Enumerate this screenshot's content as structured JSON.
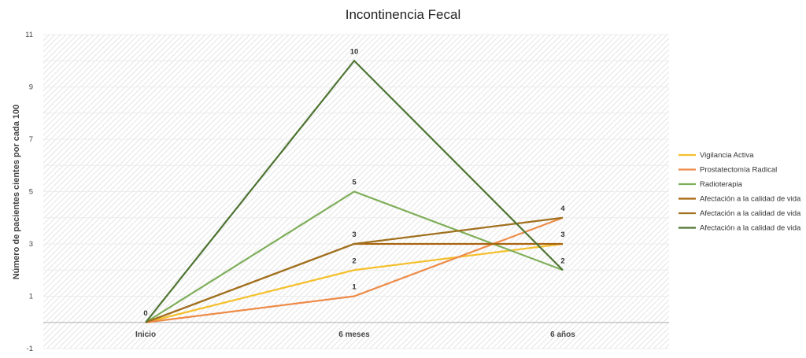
{
  "chart_data": {
    "type": "line",
    "title": "Incontinencia Fecal",
    "ylabel": "Número de pacientes cientes por cada 100",
    "xlabel": "",
    "categories": [
      "Inicio",
      "6 meses",
      "6 años"
    ],
    "ylim": [
      -1,
      11
    ],
    "yticks": [
      11,
      9,
      7,
      5,
      3,
      1,
      -1
    ],
    "grid": true,
    "legend_position": "right",
    "series": [
      {
        "name": "Vigilancia Activa",
        "values": [
          0,
          2,
          3
        ],
        "color": "#F5C02E"
      },
      {
        "name": "Prostatectomía Radical",
        "values": [
          0,
          1,
          4
        ],
        "color": "#ED8B48"
      },
      {
        "name": "Radioterapia",
        "values": [
          0,
          5,
          2
        ],
        "color": "#7FAE5A"
      },
      {
        "name": "Afectación a la calidad de vida",
        "values": [
          0,
          3,
          3
        ],
        "color": "#A8650F"
      },
      {
        "name": "Afectación a la calidad de vida",
        "values": [
          0,
          3,
          4
        ],
        "color": "#A0701E"
      },
      {
        "name": "Afectación a la calidad de vida",
        "values": [
          0,
          10,
          2
        ],
        "color": "#4E7432"
      }
    ],
    "data_labels": [
      {
        "category": "Inicio",
        "value": 0,
        "text": "0"
      },
      {
        "category": "6 meses",
        "value": 10,
        "text": "10"
      },
      {
        "category": "6 meses",
        "value": 5,
        "text": "5"
      },
      {
        "category": "6 meses",
        "value": 3,
        "text": "3"
      },
      {
        "category": "6 meses",
        "value": 2,
        "text": "2"
      },
      {
        "category": "6 meses",
        "value": 1,
        "text": "1"
      },
      {
        "category": "6 años",
        "value": 4,
        "text": "4"
      },
      {
        "category": "6 años",
        "value": 3,
        "text": "3"
      },
      {
        "category": "6 años",
        "value": 2,
        "text": "2"
      }
    ]
  }
}
